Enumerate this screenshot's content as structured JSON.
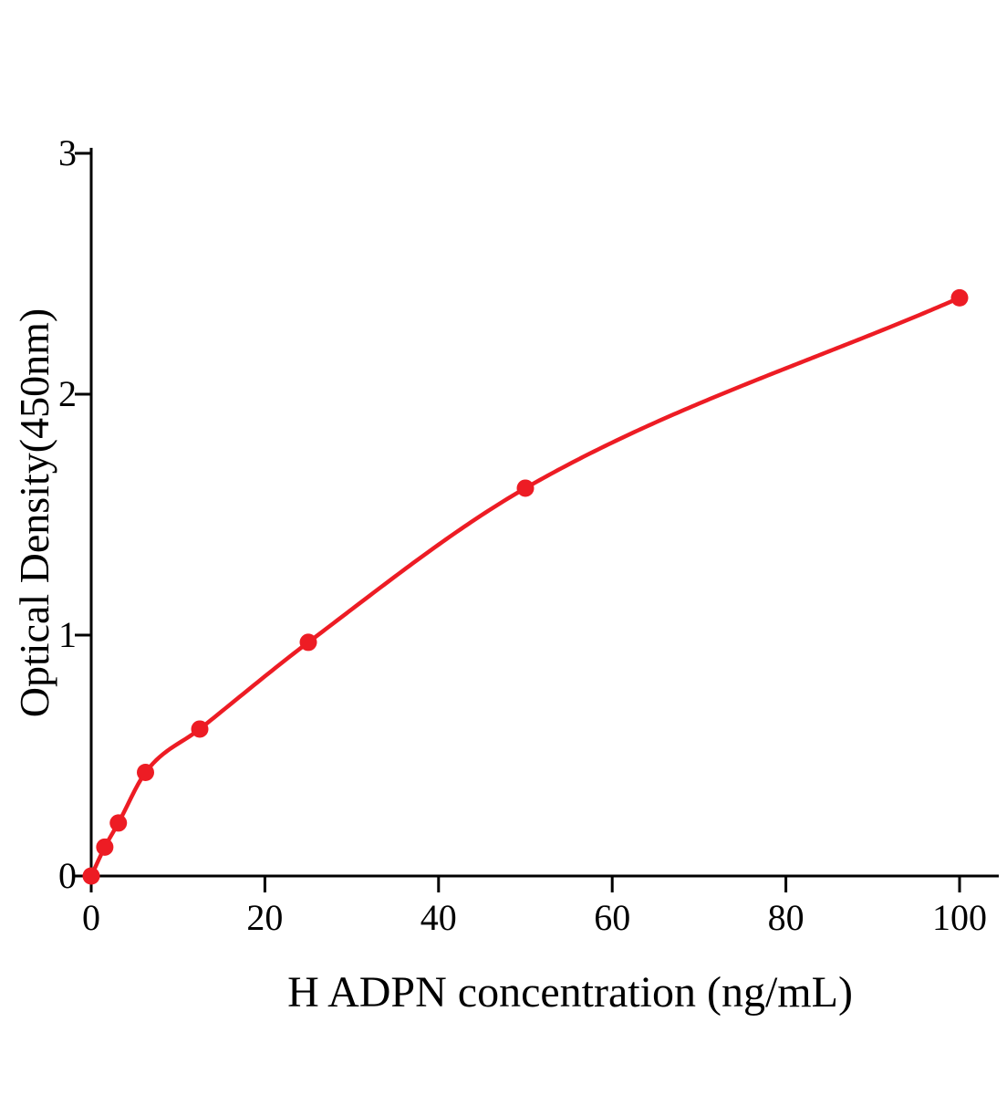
{
  "chart_data": {
    "type": "scatter",
    "title": "",
    "xlabel": "H ADPN concentration (ng/mL)",
    "ylabel": "Optical Density(450nm)",
    "x": [
      0,
      1.5625,
      3.125,
      6.25,
      12.5,
      25,
      50,
      100
    ],
    "y": [
      0,
      0.12,
      0.22,
      0.43,
      0.61,
      0.97,
      1.61,
      2.4
    ],
    "x_ticks": [
      0,
      20,
      40,
      60,
      80,
      100
    ],
    "y_ticks": [
      0,
      1,
      2,
      3
    ],
    "xlim": [
      0,
      104.5
    ],
    "ylim": [
      0,
      3
    ],
    "grid": false,
    "legend": false,
    "curve": "smooth fitted curve through points",
    "series_color": "#ed1c24",
    "axis_color": "#000000"
  }
}
